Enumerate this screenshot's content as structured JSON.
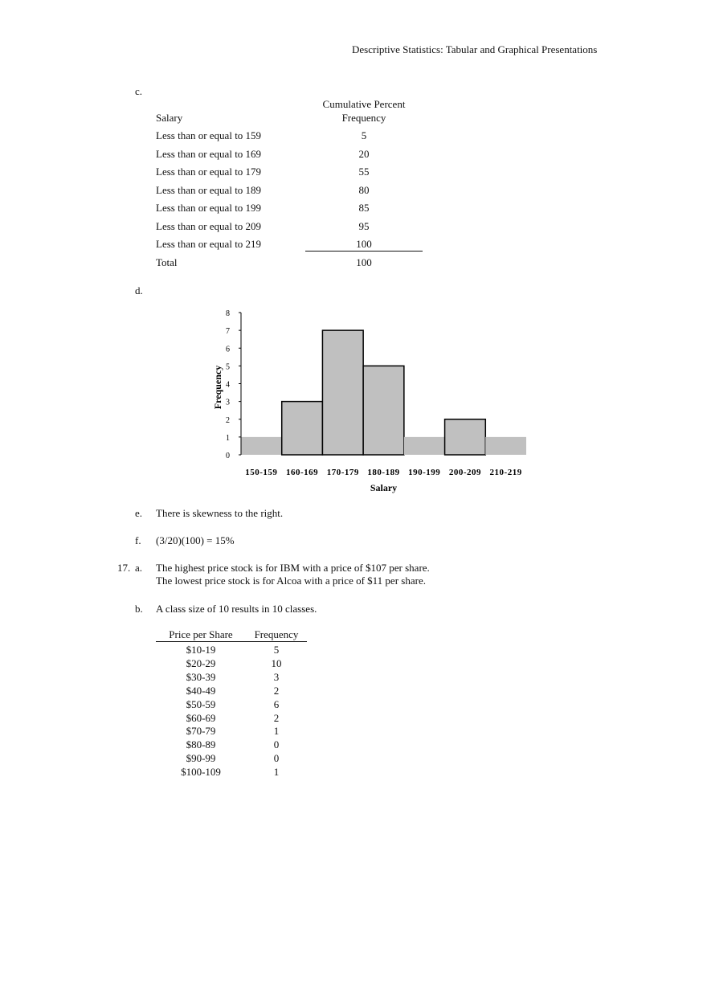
{
  "header": "Descriptive Statistics: Tabular and Graphical Presentations",
  "part_c": {
    "label": "c.",
    "col1": "Salary",
    "col2_line1": "Cumulative Percent",
    "col2_line2": "Frequency",
    "rows": [
      {
        "salary": "Less than or equal to 159",
        "value": "5"
      },
      {
        "salary": "Less than or equal to 169",
        "value": "20"
      },
      {
        "salary": "Less than or equal to 179",
        "value": "55"
      },
      {
        "salary": "Less than or equal to 189",
        "value": "80"
      },
      {
        "salary": "Less than or equal to 199",
        "value": "85"
      },
      {
        "salary": "Less than or equal to 209",
        "value": "95"
      },
      {
        "salary": "Less than or equal to 219",
        "value": "100"
      }
    ],
    "total_label": "Total",
    "total_value": "100"
  },
  "part_d": {
    "label": "d."
  },
  "chart_data": {
    "type": "bar",
    "categories": [
      "150-159",
      "160-169",
      "170-179",
      "180-189",
      "190-199",
      "200-209",
      "210-219"
    ],
    "values": [
      1,
      3,
      7,
      5,
      1,
      2,
      1
    ],
    "xlabel": "Salary",
    "ylabel": "Frequency",
    "ylim": [
      0,
      8
    ],
    "yticks": [
      "0",
      "1",
      "2",
      "3",
      "4",
      "5",
      "6",
      "7",
      "8"
    ],
    "bar_color": "#c0c0c0",
    "grid": false
  },
  "part_e": {
    "label": "e.",
    "text": "There is skewness to the right."
  },
  "part_f": {
    "label": "f.",
    "text": "(3/20)(100) = 15%"
  },
  "q17": {
    "number": "17.",
    "a_label": "a.",
    "a_line1": "The highest price stock is for IBM with a price of $107 per share.",
    "a_line2": "The lowest price stock is for Alcoa with a price of $11 per share.",
    "b_label": "b.",
    "b_text": "A class size of 10 results in 10 classes.",
    "col1": "Price per Share",
    "col2": "Frequency",
    "rows": [
      {
        "price": "$10-19",
        "freq": "5"
      },
      {
        "price": "$20-29",
        "freq": "10"
      },
      {
        "price": "$30-39",
        "freq": "3"
      },
      {
        "price": "$40-49",
        "freq": "2"
      },
      {
        "price": "$50-59",
        "freq": "6"
      },
      {
        "price": "$60-69",
        "freq": "2"
      },
      {
        "price": "$70-79",
        "freq": "1"
      },
      {
        "price": "$80-89",
        "freq": "0"
      },
      {
        "price": "$90-99",
        "freq": "0"
      },
      {
        "price": "$100-109",
        "freq": "1"
      }
    ]
  }
}
